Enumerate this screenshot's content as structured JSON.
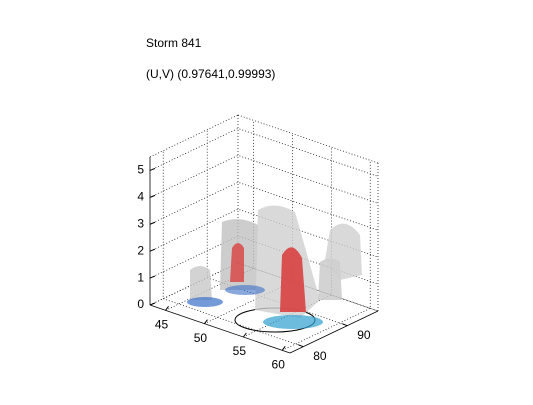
{
  "chart_data": {
    "type": "isosurface3d",
    "title": "Storm 841",
    "subtitle": "(U,V) (0.97641,0.99993)",
    "xlim": [
      43,
      61
    ],
    "xticks": [
      45,
      50,
      55,
      60
    ],
    "ylim": [
      77,
      97
    ],
    "yticks": [
      80,
      90
    ],
    "zlim": [
      0,
      5.5
    ],
    "zticks": [
      0,
      1,
      2,
      3,
      4,
      5
    ],
    "grid": true
  }
}
